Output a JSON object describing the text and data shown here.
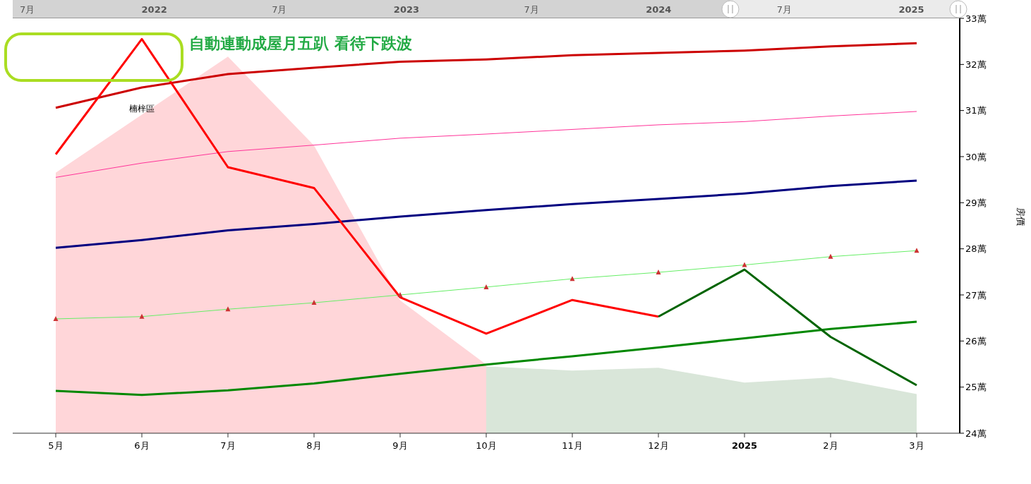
{
  "chart_data": {
    "type": "line",
    "title": "自動連動成屋月五趴 看待下跌波",
    "ylabel": "房價",
    "categories": [
      "5月",
      "6月",
      "7月",
      "8月",
      "9月",
      "10月",
      "11月",
      "12月",
      "2025",
      "2月",
      "3月"
    ],
    "ylim": [
      24,
      33
    ],
    "yticks": [
      {
        "value": 24,
        "label": "24萬"
      },
      {
        "value": 25,
        "label": "25萬"
      },
      {
        "value": 26,
        "label": "26萬"
      },
      {
        "value": 27,
        "label": "27萬"
      },
      {
        "value": 28,
        "label": "28萬"
      },
      {
        "value": 29,
        "label": "29萬"
      },
      {
        "value": 30,
        "label": "30萬"
      },
      {
        "value": 31,
        "label": "31萬"
      },
      {
        "value": 32,
        "label": "32萬"
      },
      {
        "value": 33,
        "label": "33萬"
      }
    ],
    "x2lim": [
      "2021-06-10",
      "2025-03-12"
    ],
    "x2ticks": [
      {
        "value": "2021-07-01",
        "label": "7月"
      },
      {
        "value": "2022-01-01",
        "label": "2022"
      },
      {
        "value": "2022-07-01",
        "label": "7月"
      },
      {
        "value": "2023-01-01",
        "label": "2023"
      },
      {
        "value": "2023-07-01",
        "label": "7月"
      },
      {
        "value": "2024-01-01",
        "label": "2024"
      },
      {
        "value": "2024-07-01",
        "label": "7月"
      },
      {
        "value": "2025-01-01",
        "label": "2025"
      }
    ],
    "grid": false,
    "legend": false,
    "annotations": [
      "楠梓區"
    ],
    "series": [
      {
        "type": "area",
        "color": "#ffd6d9",
        "values": [
          29.65,
          30.91,
          32.17,
          30.24,
          26.88,
          25.49,
          null,
          null,
          null,
          null,
          null
        ]
      },
      {
        "type": "area",
        "color": "#d9e6d9",
        "values": [
          null,
          null,
          null,
          null,
          null,
          25.45,
          25.36,
          25.42,
          25.1,
          25.21,
          24.85
        ]
      },
      {
        "color": "#cc0000",
        "values": [
          31.06,
          31.5,
          31.79,
          31.93,
          32.06,
          32.11,
          32.2,
          32.25,
          32.3,
          32.39,
          32.46
        ]
      },
      {
        "color": "#ff3399",
        "values": [
          29.55,
          29.86,
          30.11,
          30.25,
          30.4,
          30.49,
          30.59,
          30.69,
          30.76,
          30.88,
          30.98
        ]
      },
      {
        "color": "#000080",
        "values": [
          28.02,
          28.19,
          28.4,
          28.54,
          28.7,
          28.84,
          28.97,
          29.08,
          29.2,
          29.36,
          29.48
        ]
      },
      {
        "color": "#66ee66",
        "marker": "triangle",
        "values": [
          26.48,
          26.53,
          26.69,
          26.83,
          27.0,
          27.17,
          27.35,
          27.49,
          27.65,
          27.83,
          27.96
        ]
      },
      {
        "color": "#008800",
        "values": [
          24.92,
          24.83,
          24.93,
          25.08,
          25.29,
          25.49,
          25.67,
          25.86,
          26.06,
          26.26,
          26.42
        ]
      },
      {
        "color": "#ff0000",
        "values": [
          30.05,
          32.55,
          29.77,
          29.32,
          26.95,
          26.16,
          26.89,
          26.53,
          null,
          null,
          null
        ]
      },
      {
        "color": "#006400",
        "values": [
          null,
          null,
          null,
          null,
          null,
          null,
          null,
          26.53,
          27.55,
          26.09,
          25.04
        ]
      }
    ]
  }
}
